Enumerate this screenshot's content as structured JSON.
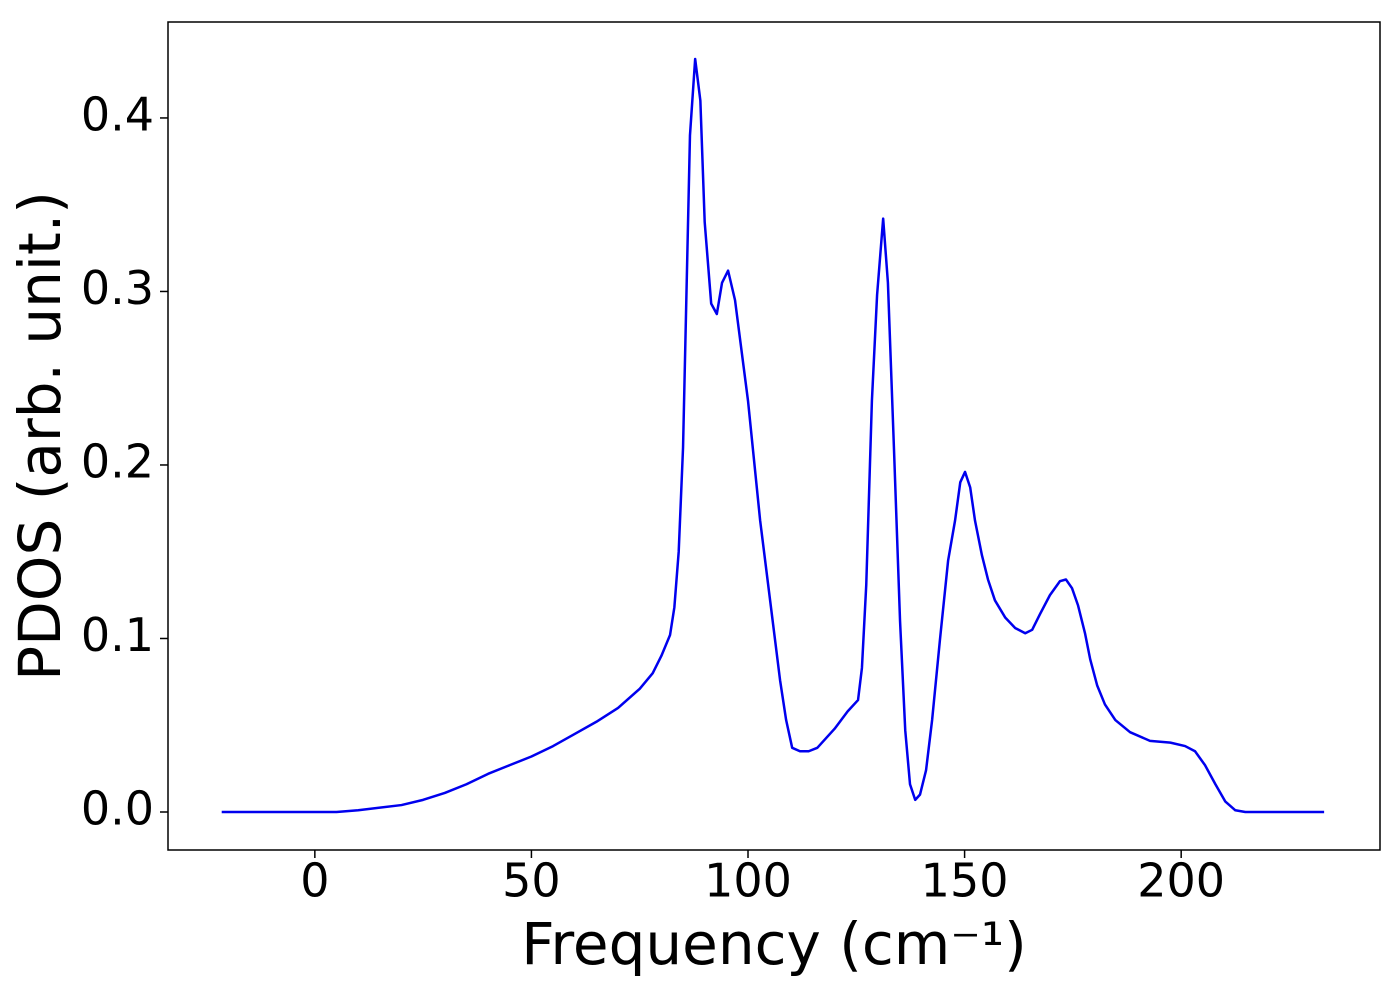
{
  "chart_data": {
    "type": "line",
    "x_label": "Frequency (cm⁻¹)",
    "y_label": "PDOS (arb. unit.)",
    "xlim": [
      -33.9,
      245.9
    ],
    "ylim": [
      -0.0219,
      0.4553
    ],
    "xticks": [
      0,
      50,
      100,
      150,
      200
    ],
    "yticks": [
      {
        "value": 0,
        "label": "0.0"
      },
      0.1,
      0.2,
      0.3,
      0.4
    ],
    "grid": false,
    "series": [
      {
        "name": "PDOS",
        "color": "#0000ee",
        "x": [
          -21.5,
          5,
          10,
          20,
          25,
          30,
          35,
          40,
          45,
          50,
          55,
          60,
          65,
          70,
          75,
          78,
          80,
          82,
          83,
          84,
          85,
          86.6,
          87.8,
          89,
          90,
          91.5,
          92.8,
          94,
          95.4,
          97,
          100,
          102.8,
          105.1,
          107.4,
          108.8,
          110.2,
          112,
          114,
          116,
          120,
          123,
          125.4,
          126.3,
          127.3,
          128.6,
          129.8,
          131.2,
          132.3,
          133.7,
          135.1,
          136.3,
          137.4,
          138.6,
          139.7,
          141.1,
          142.5,
          144.3,
          146.2,
          147.8,
          149,
          150.1,
          151.3,
          152.4,
          154,
          155.4,
          157,
          159.4,
          161.7,
          164,
          165.6,
          167.4,
          169.7,
          172,
          173.4,
          174.8,
          176.2,
          177.8,
          179,
          180.6,
          182.4,
          184.8,
          188.2,
          192.8,
          197.5,
          200.9,
          203.2,
          205.5,
          207.9,
          210.2,
          212.5,
          214.8,
          233
        ],
        "values": [
          0,
          0,
          0.001,
          0.004,
          0.007,
          0.011,
          0.016,
          0.022,
          0.027,
          0.032,
          0.038,
          0.045,
          0.052,
          0.06,
          0.071,
          0.08,
          0.09,
          0.102,
          0.118,
          0.15,
          0.21,
          0.39,
          0.434,
          0.41,
          0.34,
          0.293,
          0.287,
          0.305,
          0.312,
          0.295,
          0.237,
          0.168,
          0.122,
          0.076,
          0.053,
          0.037,
          0.035,
          0.035,
          0.037,
          0.048,
          0.058,
          0.0645,
          0.083,
          0.131,
          0.237,
          0.298,
          0.342,
          0.305,
          0.209,
          0.11,
          0.047,
          0.016,
          0.007,
          0.01,
          0.024,
          0.053,
          0.099,
          0.145,
          0.168,
          0.19,
          0.196,
          0.187,
          0.168,
          0.148,
          0.134,
          0.122,
          0.112,
          0.106,
          0.103,
          0.105,
          0.114,
          0.125,
          0.133,
          0.134,
          0.129,
          0.119,
          0.103,
          0.088,
          0.073,
          0.062,
          0.053,
          0.046,
          0.041,
          0.04,
          0.038,
          0.035,
          0.027,
          0.016,
          0.006,
          0.001,
          0,
          0
        ]
      }
    ]
  }
}
